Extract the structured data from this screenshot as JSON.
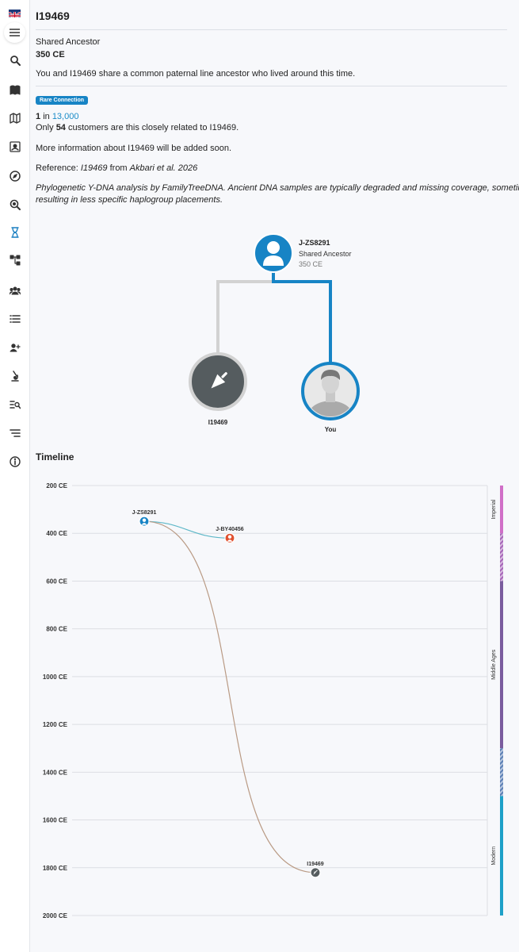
{
  "sidebar": {
    "flag": "uk-flag",
    "items": [
      {
        "name": "search-icon"
      },
      {
        "name": "book-icon"
      },
      {
        "name": "map-icon"
      },
      {
        "name": "portrait-icon"
      },
      {
        "name": "compass-icon"
      },
      {
        "name": "radar-icon"
      },
      {
        "name": "hourglass-icon",
        "active": true
      },
      {
        "name": "tree-icon"
      },
      {
        "name": "group-icon"
      },
      {
        "name": "list-icon"
      },
      {
        "name": "people-icon"
      },
      {
        "name": "microscope-icon"
      },
      {
        "name": "search-list-icon"
      },
      {
        "name": "sort-icon"
      },
      {
        "name": "info-icon"
      }
    ]
  },
  "header": {
    "title": "I19469"
  },
  "shared": {
    "label": "Shared Ancestor",
    "date": "350 CE",
    "description": "You and I19469 share a common paternal line ancestor who lived around this time."
  },
  "rarity": {
    "badge": "Rare Connection",
    "ratio_prefix": "1",
    "ratio_in": "in",
    "ratio_value": "13,000",
    "customers_prefix": "Only",
    "customers_count": "54",
    "customers_suffix": "customers are this closely related to I19469."
  },
  "info": {
    "more": "More information about I19469 will be added soon.",
    "reference_prefix": "Reference:",
    "reference_sample": "I19469",
    "reference_mid": "from",
    "reference_source": "Akbari et al. 2026",
    "phylo_line1": "Phylogenetic Y-DNA analysis by FamilyTreeDNA. Ancient DNA samples are typically degraded and missing coverage, sometimes",
    "phylo_line2": "resulting in less specific haplogroup placements."
  },
  "tree": {
    "ancestor_name": "J-ZS8291",
    "ancestor_label": "Shared Ancestor",
    "ancestor_date": "350 CE",
    "left_label": "I19469",
    "right_label": "You",
    "colors": {
      "ancestor": "#1784c5",
      "left": "#555c5f",
      "left_line": "#d2d2d2",
      "right_line": "#1784c5"
    }
  },
  "timeline": {
    "title": "Timeline",
    "ticks": [
      "200 CE",
      "400 CE",
      "600 CE",
      "800 CE",
      "1000 CE",
      "1200 CE",
      "1400 CE",
      "1600 CE",
      "1800 CE",
      "2000 CE"
    ],
    "tick_years": [
      200,
      400,
      600,
      800,
      1000,
      1200,
      1400,
      1600,
      1800,
      2000
    ],
    "year_range": [
      200,
      2000
    ],
    "nodes": [
      {
        "label": "J-ZS8291",
        "year": 350,
        "color": "#1784c5",
        "icon": "person-icon"
      },
      {
        "label": "J-BY40456",
        "year": 420,
        "color": "#e0502f",
        "icon": "person-icon"
      },
      {
        "label": "I19469",
        "year": 1820,
        "color": "#555c5f",
        "icon": "trowel-icon"
      }
    ],
    "eras": [
      {
        "label": "Imperial",
        "from": 200,
        "to": 400,
        "color": "#d06fc7"
      },
      {
        "label": "",
        "from": 400,
        "to": 600,
        "color": "#a665b8",
        "striped": true
      },
      {
        "label": "Middle Ages",
        "from": 600,
        "to": 1300,
        "color": "#7a5c9e"
      },
      {
        "label": "",
        "from": 1300,
        "to": 1500,
        "color": "#5b7fb5",
        "striped": true
      },
      {
        "label": "Modern",
        "from": 1500,
        "to": 2000,
        "color": "#1ea0c8"
      }
    ]
  }
}
